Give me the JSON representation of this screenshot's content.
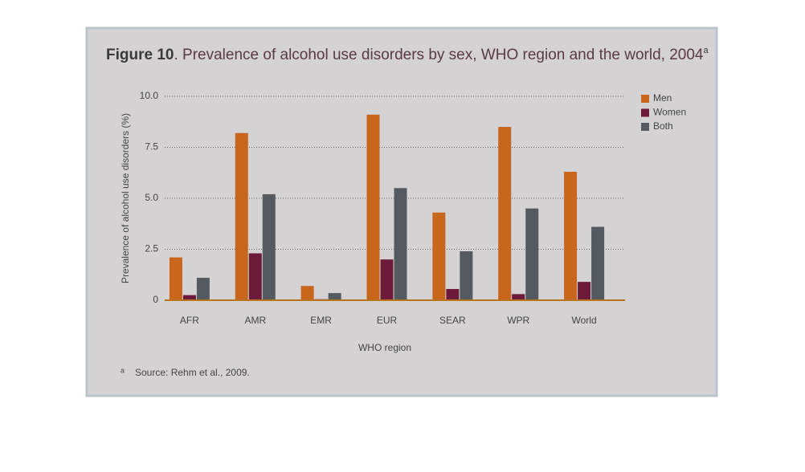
{
  "chart_data": {
    "type": "bar",
    "title_label": "Figure 10",
    "title": ". Prevalence of alcohol use disorders by sex, WHO region and the world, 2004",
    "title_superscript": "a",
    "y_label": "Prevalence of alcohol use disorders (%)",
    "x_label": "WHO region",
    "footnote_marker": "a",
    "footnote": "Source: Rehm et al., 2009.",
    "categories": [
      "AFR",
      "AMR",
      "EMR",
      "EUR",
      "SEAR",
      "WPR",
      "World"
    ],
    "series": [
      {
        "name": "Men",
        "color": "#c8661e",
        "values": [
          2.1,
          8.2,
          0.7,
          9.1,
          4.3,
          8.5,
          6.3
        ]
      },
      {
        "name": "Women",
        "color": "#6b1a3a",
        "values": [
          0.25,
          2.3,
          0.05,
          2.0,
          0.55,
          0.3,
          0.9
        ]
      },
      {
        "name": "Both",
        "color": "#555a60",
        "values": [
          1.1,
          5.2,
          0.35,
          5.5,
          2.4,
          4.5,
          3.6
        ]
      }
    ],
    "ylim": [
      0,
      10
    ],
    "yticks": [
      {
        "value": 10,
        "label": "10.0"
      },
      7.5,
      {
        "value": 5,
        "label": "5.0"
      },
      2.5,
      0
    ],
    "grid": true,
    "legend": "top-right"
  }
}
